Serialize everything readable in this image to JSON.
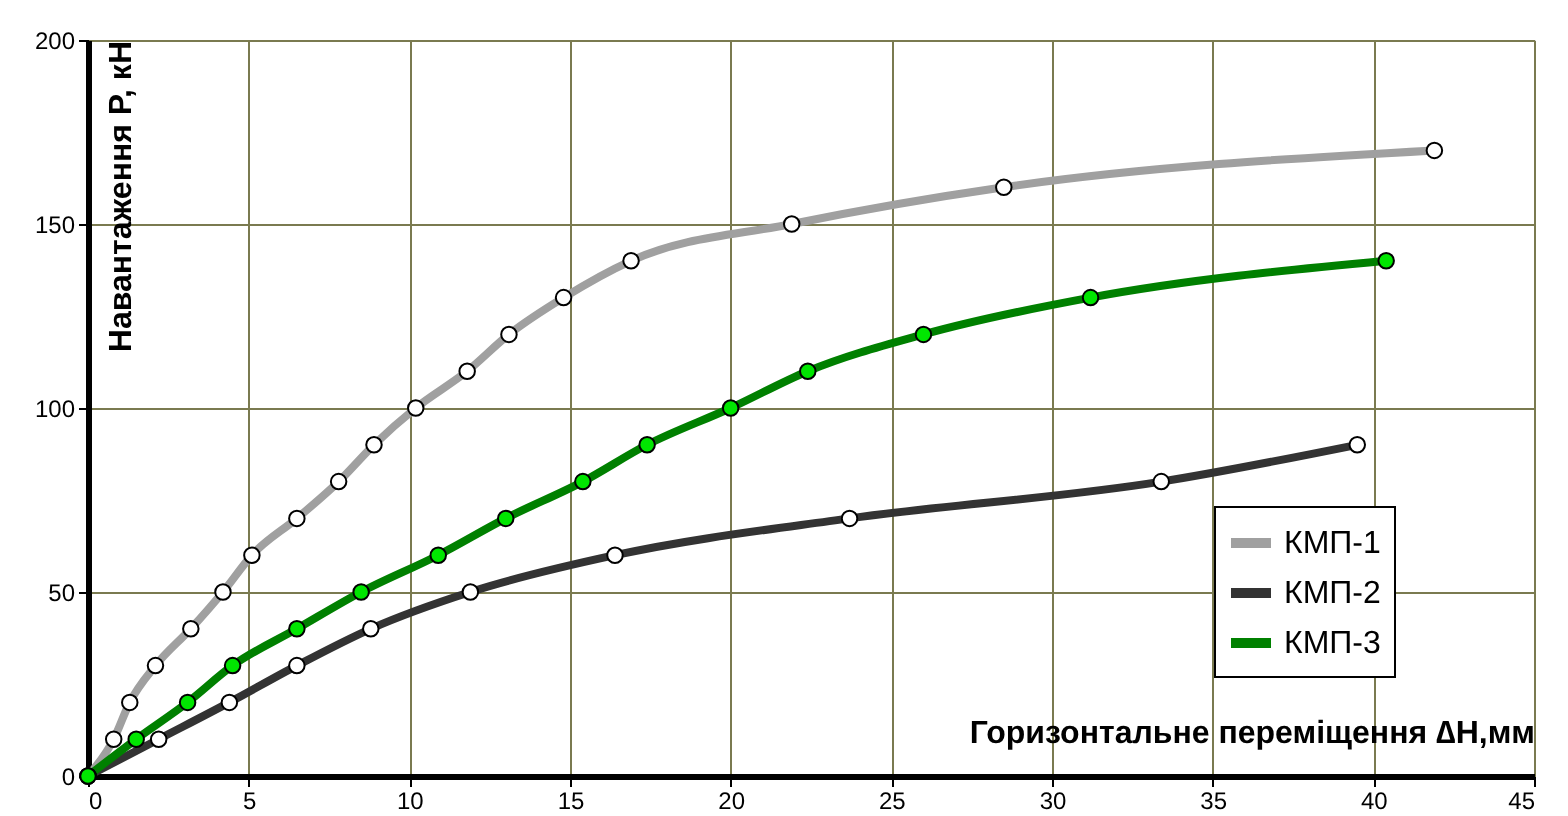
{
  "chart_data": {
    "type": "line",
    "xlabel": "Горизонтальне переміщення ∆H,мм",
    "ylabel": "Навантаження P, кН",
    "xlim": [
      0,
      45
    ],
    "xticks": [
      0,
      5,
      10,
      15,
      20,
      25,
      30,
      35,
      40,
      45
    ],
    "ylim": [
      0,
      200
    ],
    "yticks": [
      0,
      50,
      100,
      150,
      200
    ],
    "grid": true,
    "legend": "bottom right",
    "marker": "circle",
    "line_style": "solid",
    "series": [
      {
        "name": "КМП-1",
        "color": "#a0a0a0",
        "x": [
          0,
          0.8,
          1.3,
          2.1,
          3.2,
          4.2,
          5.1,
          6.5,
          7.8,
          8.9,
          10.2,
          11.8,
          13.1,
          14.8,
          16.9,
          21.9,
          28.5,
          41.9
        ],
        "values": [
          0,
          10,
          20,
          30,
          40,
          50,
          60,
          70,
          80,
          90,
          100,
          110,
          120,
          130,
          140,
          150,
          160,
          170
        ]
      },
      {
        "name": "КМП-2",
        "color": "#333333",
        "x": [
          0,
          2.2,
          4.4,
          6.5,
          8.8,
          11.9,
          16.4,
          23.7,
          33.4,
          39.5
        ],
        "values": [
          0,
          10,
          20,
          30,
          40,
          50,
          60,
          70,
          80,
          90
        ]
      },
      {
        "name": "КМП-3",
        "color": "#008000",
        "x": [
          0,
          1.5,
          3.1,
          4.5,
          6.5,
          8.5,
          10.9,
          13.0,
          15.4,
          17.4,
          20.0,
          22.4,
          26.0,
          31.2,
          40.4
        ],
        "values": [
          0,
          10,
          20,
          30,
          40,
          50,
          60,
          70,
          80,
          90,
          100,
          110,
          120,
          130,
          140
        ]
      }
    ]
  }
}
